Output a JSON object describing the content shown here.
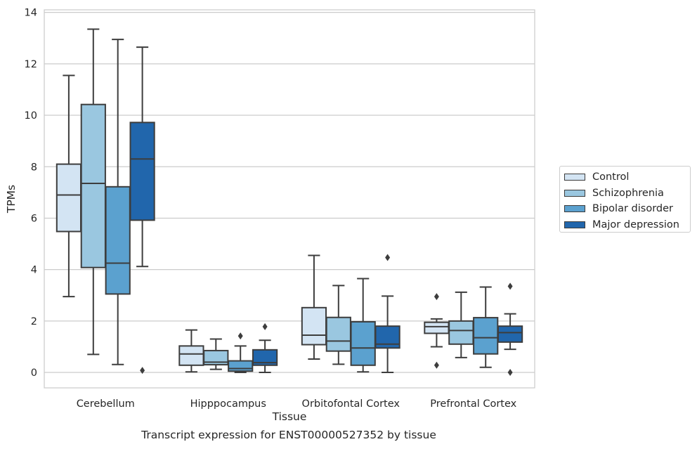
{
  "chart_data": {
    "type": "box",
    "xlabel": "Tissue",
    "ylabel": "TPMs",
    "ylim": [
      -0.6,
      14.1
    ],
    "yticks": [
      0,
      2,
      4,
      6,
      8,
      10,
      12,
      14
    ],
    "grid": "horizontal",
    "legend_position": "right",
    "categories": [
      "Cerebellum",
      "Hipppocampus",
      "Orbitofontal Cortex",
      "Prefrontal Cortex"
    ],
    "series": [
      {
        "name": "Control",
        "color": "#d3e4f3",
        "boxes": [
          {
            "whisker_low": 2.95,
            "q1": 5.48,
            "median": 6.9,
            "q3": 8.1,
            "whisker_high": 11.55,
            "outliers": []
          },
          {
            "whisker_low": 0.02,
            "q1": 0.28,
            "median": 0.72,
            "q3": 1.03,
            "whisker_high": 1.65,
            "outliers": []
          },
          {
            "whisker_low": 0.52,
            "q1": 1.08,
            "median": 1.45,
            "q3": 2.52,
            "whisker_high": 4.55,
            "outliers": []
          },
          {
            "whisker_low": 1.0,
            "q1": 1.52,
            "median": 1.78,
            "q3": 1.95,
            "whisker_high": 2.08,
            "outliers": [
              2.95,
              0.28
            ]
          }
        ]
      },
      {
        "name": "Schizophrenia",
        "color": "#9ac7e0",
        "boxes": [
          {
            "whisker_low": 0.7,
            "q1": 4.08,
            "median": 7.35,
            "q3": 10.42,
            "whisker_high": 13.35,
            "outliers": []
          },
          {
            "whisker_low": 0.12,
            "q1": 0.3,
            "median": 0.4,
            "q3": 0.85,
            "whisker_high": 1.3,
            "outliers": []
          },
          {
            "whisker_low": 0.32,
            "q1": 0.83,
            "median": 1.22,
            "q3": 2.14,
            "whisker_high": 3.38,
            "outliers": []
          },
          {
            "whisker_low": 0.58,
            "q1": 1.1,
            "median": 1.63,
            "q3": 2.0,
            "whisker_high": 3.12,
            "outliers": []
          }
        ]
      },
      {
        "name": "Bipolar disorder",
        "color": "#5ba1cf",
        "boxes": [
          {
            "whisker_low": 0.31,
            "q1": 3.05,
            "median": 4.25,
            "q3": 7.22,
            "whisker_high": 12.95,
            "outliers": []
          },
          {
            "whisker_low": 0.0,
            "q1": 0.05,
            "median": 0.15,
            "q3": 0.45,
            "whisker_high": 1.03,
            "outliers": [
              1.42
            ]
          },
          {
            "whisker_low": 0.02,
            "q1": 0.28,
            "median": 0.95,
            "q3": 1.97,
            "whisker_high": 3.65,
            "outliers": []
          },
          {
            "whisker_low": 0.2,
            "q1": 0.72,
            "median": 1.35,
            "q3": 2.13,
            "whisker_high": 3.32,
            "outliers": []
          }
        ]
      },
      {
        "name": "Major depression",
        "color": "#2166ac",
        "boxes": [
          {
            "whisker_low": 4.12,
            "q1": 5.92,
            "median": 8.3,
            "q3": 9.72,
            "whisker_high": 12.65,
            "outliers": [
              0.08
            ]
          },
          {
            "whisker_low": 0.0,
            "q1": 0.28,
            "median": 0.38,
            "q3": 0.88,
            "whisker_high": 1.25,
            "outliers": [
              1.78
            ]
          },
          {
            "whisker_low": 0.0,
            "q1": 0.95,
            "median": 1.1,
            "q3": 1.8,
            "whisker_high": 2.97,
            "outliers": [
              4.47
            ]
          },
          {
            "whisker_low": 0.9,
            "q1": 1.18,
            "median": 1.55,
            "q3": 1.8,
            "whisker_high": 2.28,
            "outliers": [
              3.35,
              0.0
            ]
          }
        ]
      }
    ],
    "caption": "Transcript expression for ENST00000527352 by tissue"
  }
}
